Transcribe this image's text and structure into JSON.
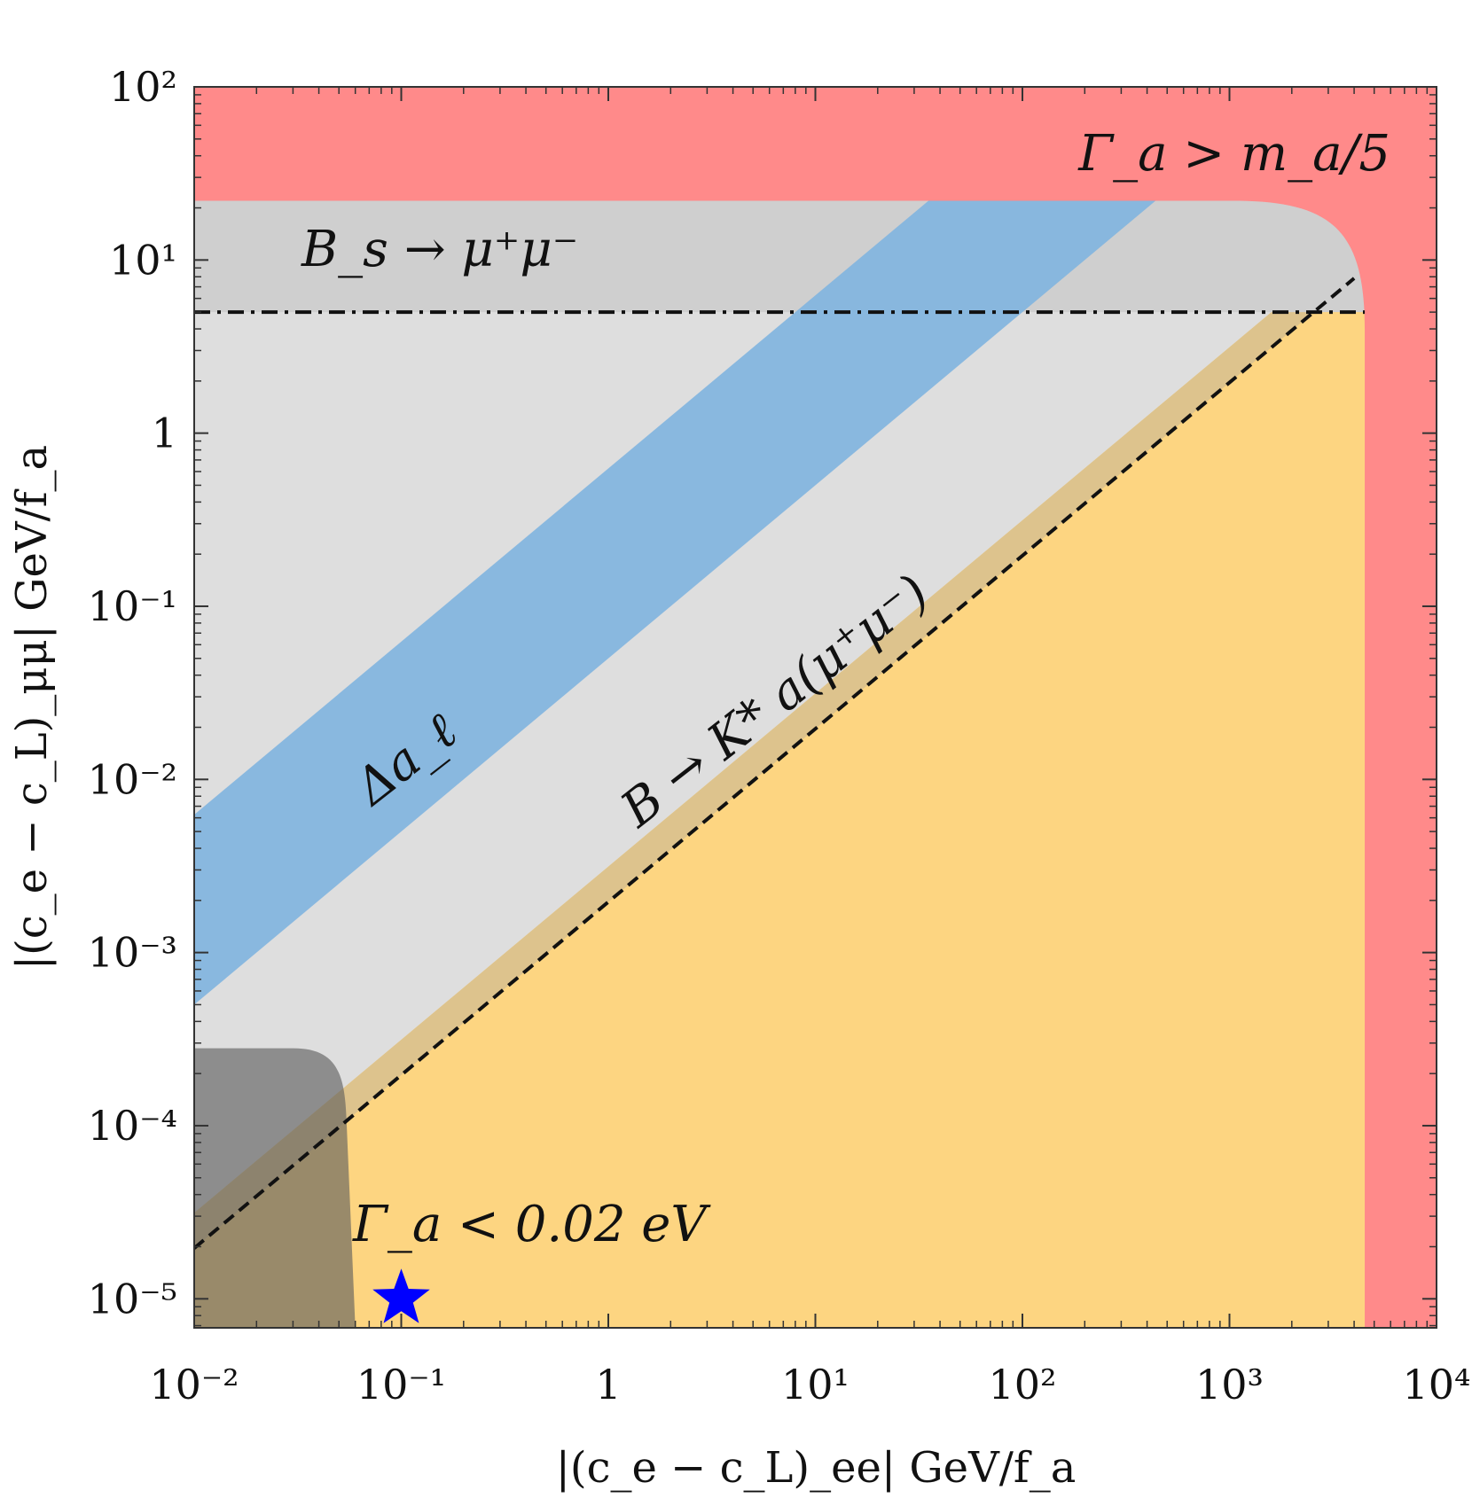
{
  "chart_data": {
    "type": "area",
    "xscale": "log",
    "yscale": "log",
    "xlim": [
      0.01,
      10000
    ],
    "ylim": [
      6.8e-06,
      100
    ],
    "xlabel": "|(c_e − c_L)_ee| GeV/f_a",
    "ylabel": "|(c_e − c_L)_μμ| GeV/f_a",
    "x_ticks": [
      {
        "value": 0.01,
        "label": "10⁻²"
      },
      {
        "value": 0.1,
        "label": "10⁻¹"
      },
      {
        "value": 1,
        "label": "1"
      },
      {
        "value": 10,
        "label": "10¹"
      },
      {
        "value": 100,
        "label": "10²"
      },
      {
        "value": 1000,
        "label": "10³"
      },
      {
        "value": 10000,
        "label": "10⁴"
      }
    ],
    "y_ticks": [
      {
        "value": 1e-05,
        "label": "10⁻⁵"
      },
      {
        "value": 0.0001,
        "label": "10⁻⁴"
      },
      {
        "value": 0.001,
        "label": "10⁻³"
      },
      {
        "value": 0.01,
        "label": "10⁻²"
      },
      {
        "value": 0.1,
        "label": "10⁻¹"
      },
      {
        "value": 1,
        "label": "1"
      },
      {
        "value": 10,
        "label": "10¹"
      },
      {
        "value": 100,
        "label": "10²"
      }
    ],
    "regions": [
      {
        "name": "Γ_a > m_a/5",
        "color": "#ff8a8a",
        "bound_y_min": 22,
        "bound_x_min": 4500
      },
      {
        "name": "B_s → μ⁺μ⁻",
        "color": "#cfcfcf",
        "y_min": 5
      },
      {
        "name": "Δa_ℓ",
        "color": "#80b4df",
        "x_y_ratio_min": 1.6,
        "x_y_ratio_max": 20
      },
      {
        "name": "B → K* a(μ⁺μ⁻)",
        "color": "#dedede",
        "y_over_x_min": 0.00196
      },
      {
        "name": "Γ_a < 0.02 eV",
        "color": "#5a5a5a",
        "x_max": 0.06,
        "y_max": 0.00028
      }
    ],
    "lines": [
      {
        "style": "dash-dot",
        "y": 5
      },
      {
        "style": "dashed",
        "y_over_x": 0.00196
      }
    ],
    "marker": {
      "shape": "star",
      "color": "#0000ff",
      "x": 0.1,
      "y": 1e-05
    },
    "labels": {
      "gamma_upper": "Γ_a > m_a/5",
      "bs": "B_s → μ⁺μ⁻",
      "delta_a": "Δa_ℓ",
      "bk": "B → K* a(μ⁺μ⁻)",
      "gamma_lower": "Γ_a < 0.02 eV"
    }
  }
}
